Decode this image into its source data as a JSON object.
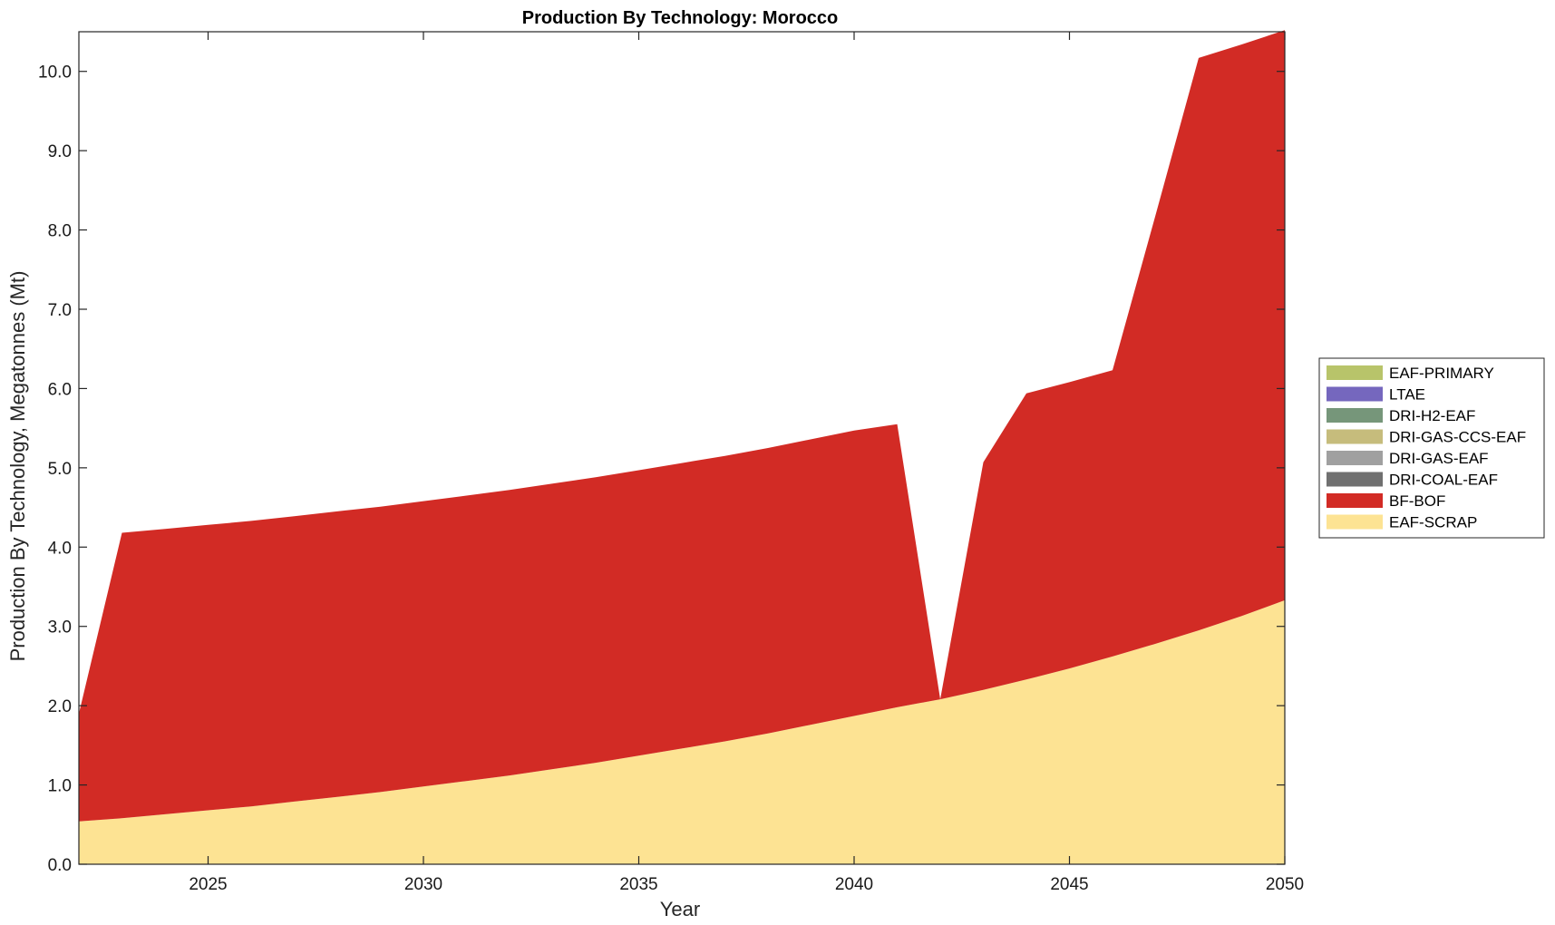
{
  "chart_data": {
    "type": "area",
    "stacked": true,
    "title": "Production By Technology: Morocco",
    "xlabel": "Year",
    "ylabel": "Production By Technology, Megatonnes (Mt)",
    "xlim": [
      2022,
      2050
    ],
    "ylim": [
      0,
      10.5
    ],
    "xticks": [
      "2025",
      "2030",
      "2035",
      "2040",
      "2045",
      "2050"
    ],
    "xtick_values": [
      2025,
      2030,
      2035,
      2040,
      2045,
      2050
    ],
    "yticks": [
      "0.0",
      "1.0",
      "2.0",
      "3.0",
      "4.0",
      "5.0",
      "6.0",
      "7.0",
      "8.0",
      "9.0",
      "10.0"
    ],
    "ytick_values": [
      0,
      1,
      2,
      3,
      4,
      5,
      6,
      7,
      8,
      9,
      10
    ],
    "legend_position": "right",
    "x": [
      2022,
      2023,
      2024,
      2025,
      2026,
      2027,
      2028,
      2029,
      2030,
      2031,
      2032,
      2033,
      2034,
      2035,
      2036,
      2037,
      2038,
      2039,
      2040,
      2041,
      2042,
      2043,
      2044,
      2045,
      2046,
      2047,
      2048,
      2049,
      2050
    ],
    "series": [
      {
        "name": "EAF-SCRAP",
        "color": "#fde393",
        "values": [
          0.54,
          0.58,
          0.63,
          0.68,
          0.73,
          0.79,
          0.85,
          0.91,
          0.98,
          1.05,
          1.12,
          1.2,
          1.28,
          1.37,
          1.46,
          1.55,
          1.65,
          1.76,
          1.87,
          1.98,
          2.08,
          2.2,
          2.33,
          2.47,
          2.62,
          2.78,
          2.95,
          3.13,
          3.33
        ]
      },
      {
        "name": "BF-BOF",
        "color": "#d22b25",
        "values": [
          1.36,
          3.6,
          3.6,
          3.6,
          3.6,
          3.6,
          3.6,
          3.6,
          3.6,
          3.6,
          3.6,
          3.6,
          3.6,
          3.6,
          3.6,
          3.6,
          3.6,
          3.6,
          3.6,
          3.57,
          0.0,
          2.87,
          3.61,
          3.61,
          3.61,
          5.41,
          7.22,
          7.21,
          7.19
        ]
      },
      {
        "name": "DRI-COAL-EAF",
        "color": "#707070",
        "values": [
          0,
          0,
          0,
          0,
          0,
          0,
          0,
          0,
          0,
          0,
          0,
          0,
          0,
          0,
          0,
          0,
          0,
          0,
          0,
          0,
          0,
          0,
          0,
          0,
          0,
          0,
          0,
          0,
          0
        ]
      },
      {
        "name": "DRI-GAS-EAF",
        "color": "#a0a0a0",
        "values": [
          0,
          0,
          0,
          0,
          0,
          0,
          0,
          0,
          0,
          0,
          0,
          0,
          0,
          0,
          0,
          0,
          0,
          0,
          0,
          0,
          0,
          0,
          0,
          0,
          0,
          0,
          0,
          0,
          0
        ]
      },
      {
        "name": "DRI-GAS-CCS-EAF",
        "color": "#c6bc7c",
        "values": [
          0,
          0,
          0,
          0,
          0,
          0,
          0,
          0,
          0,
          0,
          0,
          0,
          0,
          0,
          0,
          0,
          0,
          0,
          0,
          0,
          0,
          0,
          0,
          0,
          0,
          0,
          0,
          0,
          0
        ]
      },
      {
        "name": "DRI-H2-EAF",
        "color": "#76967a",
        "values": [
          0,
          0,
          0,
          0,
          0,
          0,
          0,
          0,
          0,
          0,
          0,
          0,
          0,
          0,
          0,
          0,
          0,
          0,
          0,
          0,
          0,
          0,
          0,
          0,
          0,
          0,
          0,
          0,
          0
        ]
      },
      {
        "name": "LTAE",
        "color": "#7567be",
        "values": [
          0,
          0,
          0,
          0,
          0,
          0,
          0,
          0,
          0,
          0,
          0,
          0,
          0,
          0,
          0,
          0,
          0,
          0,
          0,
          0,
          0,
          0,
          0,
          0,
          0,
          0,
          0,
          0,
          0
        ]
      },
      {
        "name": "EAF-PRIMARY",
        "color": "#b8c46a",
        "values": [
          0,
          0,
          0,
          0,
          0,
          0,
          0,
          0,
          0,
          0,
          0,
          0,
          0,
          0,
          0,
          0,
          0,
          0,
          0,
          0,
          0,
          0,
          0,
          0,
          0,
          0,
          0,
          0,
          0
        ]
      }
    ],
    "legend_order": [
      "EAF-PRIMARY",
      "LTAE",
      "DRI-H2-EAF",
      "DRI-GAS-CCS-EAF",
      "DRI-GAS-EAF",
      "DRI-COAL-EAF",
      "BF-BOF",
      "EAF-SCRAP"
    ]
  }
}
